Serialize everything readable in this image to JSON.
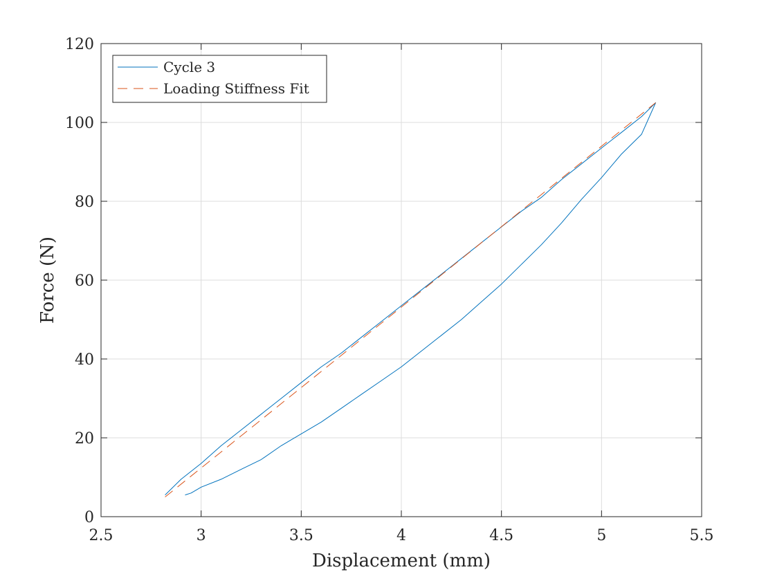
{
  "chart_data": {
    "type": "line",
    "xlabel": "Displacement (mm)",
    "ylabel": "Force (N)",
    "xlim": [
      2.5,
      5.5
    ],
    "ylim": [
      0,
      120
    ],
    "xticks": [
      2.5,
      3,
      3.5,
      4,
      4.5,
      5,
      5.5
    ],
    "xtick_labels": [
      "2.5",
      "3",
      "3.5",
      "4",
      "4.5",
      "5",
      "5.5"
    ],
    "yticks": [
      0,
      20,
      40,
      60,
      80,
      100,
      120
    ],
    "ytick_labels": [
      "0",
      "20",
      "40",
      "60",
      "80",
      "100",
      "120"
    ],
    "grid": true,
    "legend_position": "top-left",
    "series": [
      {
        "name": "Cycle 3",
        "color": "#0072BD",
        "style": "solid",
        "loading": {
          "x": [
            2.82,
            2.9,
            3.0,
            3.1,
            3.2,
            3.3,
            3.4,
            3.5,
            3.6,
            3.7,
            3.8,
            3.9,
            4.0,
            4.1,
            4.2,
            4.3,
            4.4,
            4.5,
            4.6,
            4.7,
            4.8,
            4.9,
            5.0,
            5.1,
            5.2,
            5.27
          ],
          "y": [
            5.5,
            9.5,
            13.5,
            18.0,
            22.0,
            26.0,
            30.0,
            34.0,
            38.0,
            41.5,
            45.5,
            49.5,
            53.5,
            57.5,
            61.5,
            65.5,
            69.5,
            73.5,
            77.5,
            81.0,
            85.5,
            89.5,
            93.5,
            97.5,
            101.5,
            105.0
          ]
        },
        "unloading": {
          "x": [
            5.27,
            5.2,
            5.1,
            5.0,
            4.9,
            4.8,
            4.7,
            4.6,
            4.5,
            4.4,
            4.3,
            4.2,
            4.1,
            4.0,
            3.9,
            3.8,
            3.7,
            3.6,
            3.5,
            3.4,
            3.3,
            3.2,
            3.1,
            3.0,
            2.95,
            2.92
          ],
          "y": [
            105.0,
            97.0,
            92.0,
            86.0,
            80.5,
            74.5,
            69.0,
            64.0,
            59.0,
            54.5,
            50.0,
            46.0,
            42.0,
            38.0,
            34.5,
            31.0,
            27.5,
            24.0,
            21.0,
            18.0,
            14.5,
            12.0,
            9.5,
            7.5,
            6.0,
            5.5
          ]
        }
      },
      {
        "name": "Loading Stiffness Fit",
        "color": "#D95319",
        "style": "dashed",
        "x": [
          2.82,
          5.27
        ],
        "y": [
          5.0,
          105.0
        ]
      }
    ]
  }
}
